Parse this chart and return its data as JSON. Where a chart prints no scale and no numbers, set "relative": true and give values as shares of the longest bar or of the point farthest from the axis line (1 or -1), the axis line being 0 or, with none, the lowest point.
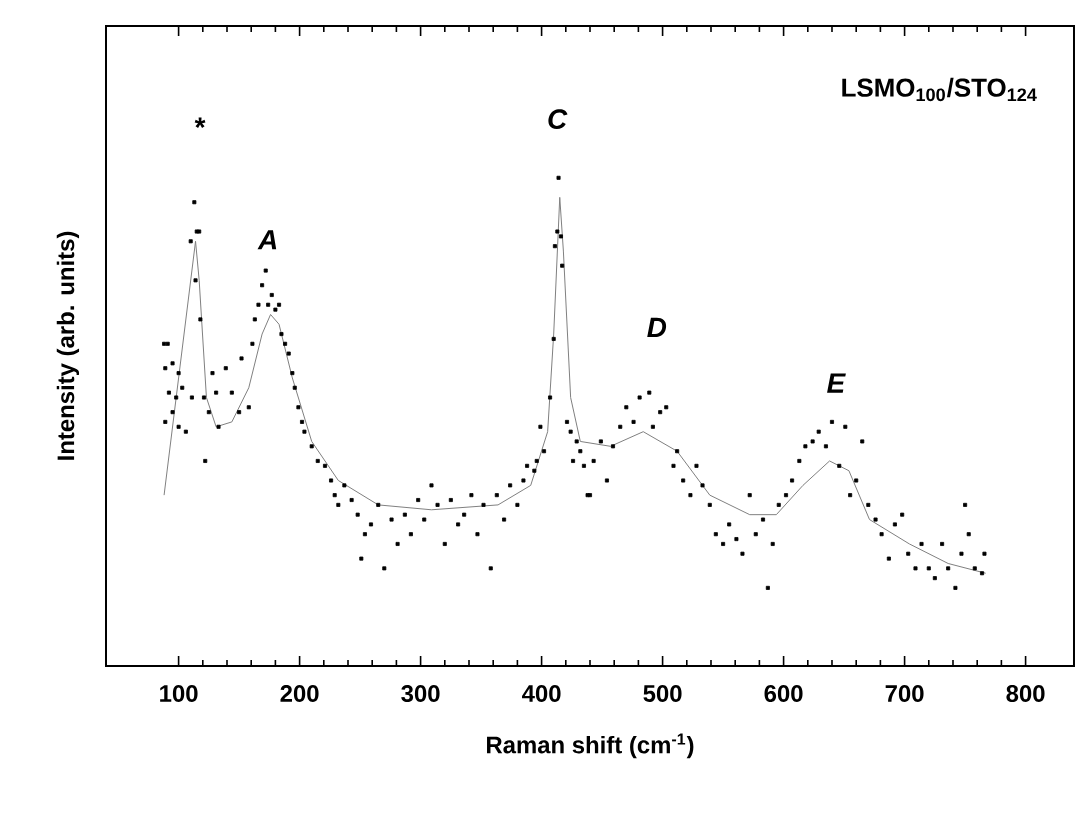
{
  "chart_data": {
    "type": "scatter",
    "title": "LSMO$_{100}$/STO$_{124}$",
    "xlabel": "Raman shift (cm$^{-1}$)",
    "ylabel": "Intensity (arb. units)",
    "relative": true,
    "xlim": [
      40,
      840
    ],
    "xticks": [
      100,
      200,
      300,
      400,
      500,
      600,
      700,
      800
    ],
    "annotations": [
      "*",
      "A",
      "C",
      "D",
      "E"
    ],
    "series": [
      {
        "marker": "square",
        "color": "#000000",
        "x": [
          88,
          91,
          89,
          95,
          100,
          92,
          98,
          103,
          89,
          95,
          100,
          106,
          111,
          113,
          115,
          117,
          110,
          114,
          118,
          121,
          122,
          125,
          128,
          131,
          133,
          139,
          144,
          150,
          152,
          158,
          161,
          163,
          166,
          169,
          172,
          174,
          177,
          180,
          183,
          185,
          188,
          191,
          194,
          196,
          199,
          202,
          204,
          210,
          215,
          221,
          226,
          229,
          232,
          237,
          243,
          248,
          251,
          254,
          259,
          265,
          270,
          276,
          281,
          287,
          292,
          298,
          303,
          309,
          314,
          320,
          325,
          331,
          336,
          342,
          347,
          352,
          358,
          363,
          369,
          374,
          380,
          385,
          388,
          394,
          396,
          399,
          402,
          407,
          410,
          411,
          413,
          414,
          416,
          417,
          421,
          424,
          426,
          429,
          435,
          440,
          443,
          432,
          438,
          449,
          454,
          459,
          465,
          470,
          476,
          481,
          489,
          492,
          498,
          503,
          509,
          512,
          517,
          523,
          528,
          533,
          539,
          544,
          550,
          555,
          561,
          566,
          572,
          577,
          583,
          587,
          591,
          596,
          602,
          607,
          613,
          618,
          624,
          629,
          635,
          640,
          646,
          651,
          655,
          660,
          665,
          670,
          676,
          681,
          687,
          692,
          698,
          703,
          709,
          714,
          720,
          725,
          731,
          736,
          742,
          747,
          750,
          753,
          758,
          764,
          766
        ],
        "values": [
          0.66,
          0.66,
          0.61,
          0.62,
          0.6,
          0.56,
          0.55,
          0.57,
          0.5,
          0.52,
          0.49,
          0.48,
          0.55,
          0.95,
          0.89,
          0.89,
          0.87,
          0.79,
          0.71,
          0.55,
          0.42,
          0.52,
          0.6,
          0.56,
          0.49,
          0.61,
          0.56,
          0.52,
          0.63,
          0.53,
          0.66,
          0.71,
          0.74,
          0.78,
          0.81,
          0.74,
          0.76,
          0.73,
          0.74,
          0.68,
          0.66,
          0.64,
          0.6,
          0.57,
          0.53,
          0.5,
          0.48,
          0.45,
          0.42,
          0.41,
          0.38,
          0.35,
          0.33,
          0.37,
          0.34,
          0.31,
          0.22,
          0.27,
          0.29,
          0.33,
          0.2,
          0.3,
          0.25,
          0.31,
          0.27,
          0.34,
          0.3,
          0.37,
          0.33,
          0.25,
          0.34,
          0.29,
          0.31,
          0.35,
          0.27,
          0.33,
          0.2,
          0.35,
          0.3,
          0.37,
          0.33,
          0.38,
          0.41,
          0.4,
          0.42,
          0.49,
          0.44,
          0.55,
          0.67,
          0.86,
          0.89,
          1.0,
          0.88,
          0.82,
          0.5,
          0.48,
          0.42,
          0.46,
          0.41,
          0.35,
          0.42,
          0.44,
          0.35,
          0.46,
          0.38,
          0.45,
          0.49,
          0.53,
          0.5,
          0.55,
          0.56,
          0.49,
          0.52,
          0.53,
          0.41,
          0.44,
          0.38,
          0.35,
          0.41,
          0.37,
          0.33,
          0.27,
          0.25,
          0.29,
          0.26,
          0.23,
          0.35,
          0.27,
          0.3,
          0.16,
          0.25,
          0.33,
          0.35,
          0.38,
          0.42,
          0.45,
          0.46,
          0.48,
          0.45,
          0.5,
          0.41,
          0.49,
          0.35,
          0.38,
          0.46,
          0.33,
          0.3,
          0.27,
          0.22,
          0.29,
          0.31,
          0.23,
          0.2,
          0.25,
          0.2,
          0.18,
          0.25,
          0.2,
          0.16,
          0.23,
          0.33,
          0.27,
          0.2,
          0.19,
          0.23
        ]
      },
      {
        "type": "line",
        "color": "#808080",
        "line_style": "solid",
        "marker": "none",
        "x": [
          88,
          114,
          117,
          123,
          131,
          144,
          158,
          169,
          176,
          183,
          194,
          210,
          232,
          265,
          309,
          364,
          391,
          405,
          410,
          415,
          418,
          424,
          432,
          457,
          484,
          512,
          539,
          572,
          594,
          616,
          638,
          654,
          671,
          704,
          736,
          767
        ],
        "values": [
          0.35,
          0.87,
          0.79,
          0.55,
          0.49,
          0.5,
          0.57,
          0.68,
          0.72,
          0.7,
          0.59,
          0.46,
          0.38,
          0.33,
          0.32,
          0.33,
          0.37,
          0.48,
          0.68,
          0.96,
          0.85,
          0.55,
          0.46,
          0.45,
          0.48,
          0.44,
          0.35,
          0.31,
          0.31,
          0.37,
          0.42,
          0.4,
          0.3,
          0.25,
          0.21,
          0.19
        ]
      }
    ]
  }
}
